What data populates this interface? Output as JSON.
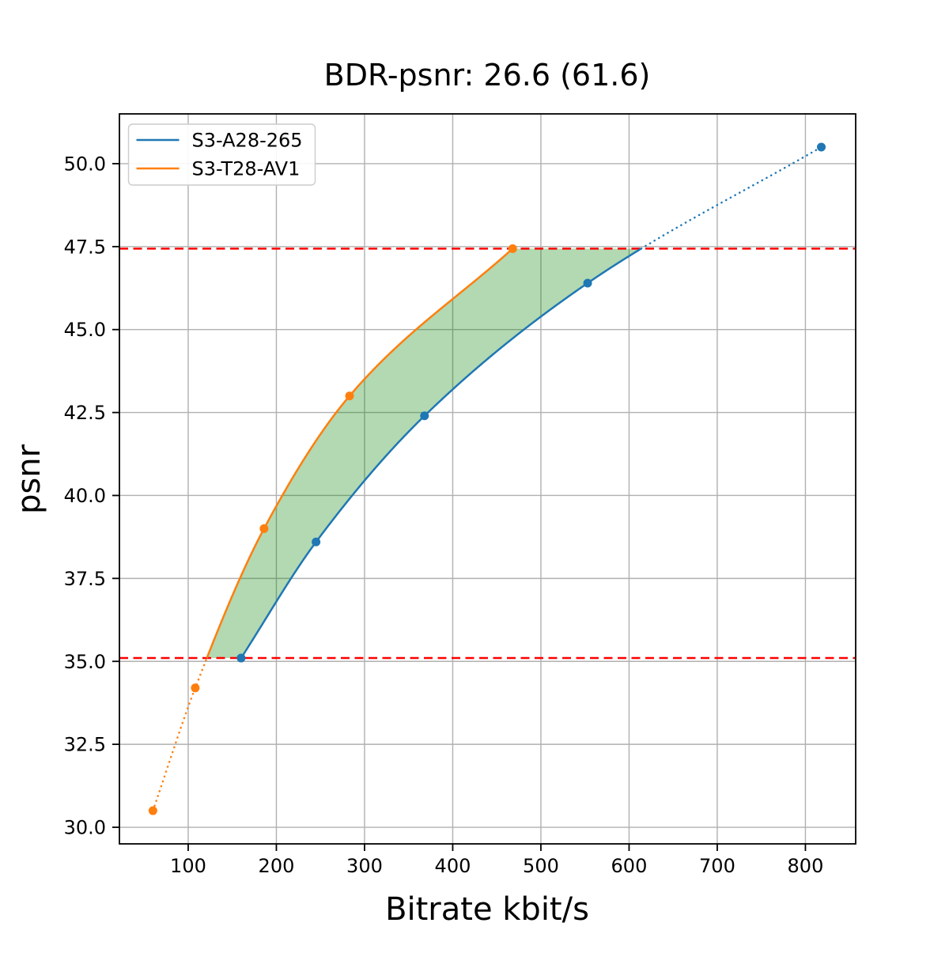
{
  "chart_data": {
    "type": "line",
    "title": "BDR-psnr: 26.6 (61.6)",
    "xlabel": "Bitrate kbit/s",
    "ylabel": "psnr",
    "xlim": [
      22,
      857
    ],
    "ylim": [
      29.5,
      51.5
    ],
    "xticks": [
      "100",
      "200",
      "300",
      "400",
      "500",
      "600",
      "700",
      "800"
    ],
    "yticks": [
      "30.0",
      "32.5",
      "35.0",
      "37.5",
      "40.0",
      "42.5",
      "45.0",
      "47.5",
      "50.0"
    ],
    "grid": true,
    "grid_color": "#b0b0b0",
    "interpolation": "pchip",
    "legend_position": "upper-left",
    "series": [
      {
        "name": "S3-A28-265",
        "color": "#1f77b4",
        "points": [
          [
            160,
            35.1
          ],
          [
            245,
            38.6
          ],
          [
            368,
            42.4
          ],
          [
            553,
            46.4
          ],
          [
            818,
            50.5
          ]
        ]
      },
      {
        "name": "S3-T28-AV1",
        "color": "#ff7f0e",
        "points": [
          [
            60,
            30.5
          ],
          [
            108,
            34.2
          ],
          [
            186,
            39.0
          ],
          [
            283,
            43.0
          ],
          [
            468,
            47.44
          ]
        ]
      }
    ],
    "overlap_hlines": {
      "color": "#ff0000",
      "style": "dashed",
      "lower_psnr": 35.1,
      "upper_psnr": 47.44
    },
    "fill_between": {
      "color": "#008000",
      "opacity": 0.3
    }
  }
}
